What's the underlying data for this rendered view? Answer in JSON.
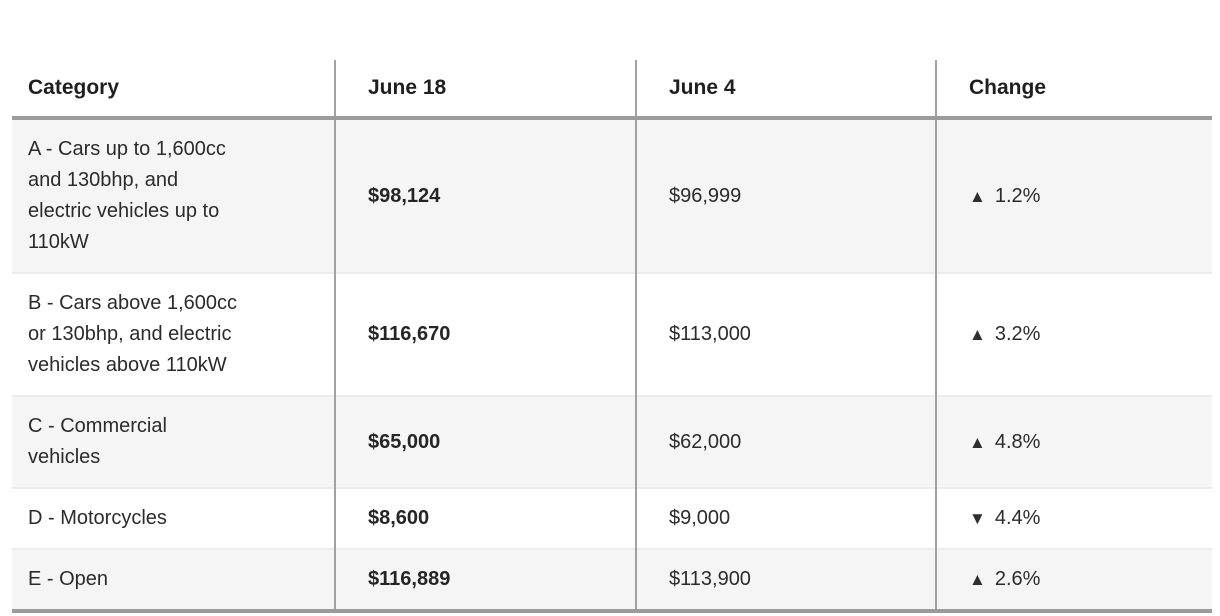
{
  "table": {
    "columns": [
      {
        "label": "Category"
      },
      {
        "label": "June 18"
      },
      {
        "label": "June 4"
      },
      {
        "label": "Change"
      }
    ],
    "rows": [
      {
        "category": "A - Cars up to 1,600cc and 130bhp, and electric vehicles up to 110kW",
        "june18": "$98,124",
        "june4": "$96,999",
        "change": "1.2%",
        "direction": "up"
      },
      {
        "category": "B - Cars above 1,600cc or 130bhp, and electric vehicles above 110kW",
        "june18": "$116,670",
        "june4": "$113,000",
        "change": "3.2%",
        "direction": "up"
      },
      {
        "category": "C - Commercial vehicles",
        "june18": "$65,000",
        "june4": "$62,000",
        "change": "4.8%",
        "direction": "up"
      },
      {
        "category": "D - Motorcycles",
        "june18": "$8,600",
        "june4": "$9,000",
        "change": "4.4%",
        "direction": "down"
      },
      {
        "category": "E - Open",
        "june18": "$116,889",
        "june4": "$113,900",
        "change": "2.6%",
        "direction": "up"
      }
    ],
    "icons": {
      "up": "▲",
      "down": "▼"
    },
    "colors": {
      "row_alt_bg": "#f5f5f5",
      "strong_border": "#9b9b9b",
      "column_divider": "#a1a1a1",
      "row_separator": "#ececec",
      "text": "#2b2b2b"
    }
  },
  "chart_data": {
    "type": "table",
    "columns": [
      "Category",
      "June 18",
      "June 4",
      "Change"
    ],
    "rows": [
      [
        "A - Cars up to 1,600cc and 130bhp, and electric vehicles up to 110kW",
        "$98,124",
        "$96,999",
        "▲ 1.2%"
      ],
      [
        "B - Cars above 1,600cc or 130bhp, and electric vehicles above 110kW",
        "$116,670",
        "$113,000",
        "▲ 3.2%"
      ],
      [
        "C - Commercial vehicles",
        "$65,000",
        "$62,000",
        "▲ 4.8%"
      ],
      [
        "D - Motorcycles",
        "$8,600",
        "$9,000",
        "▼ 4.4%"
      ],
      [
        "E - Open",
        "$116,889",
        "$113,900",
        "▲ 2.6%"
      ]
    ],
    "values_june18": [
      98124,
      116670,
      65000,
      8600,
      116889
    ],
    "values_june4": [
      96999,
      113000,
      62000,
      9000,
      113900
    ],
    "change_percent": [
      1.2,
      3.2,
      4.8,
      -4.4,
      2.6
    ]
  }
}
